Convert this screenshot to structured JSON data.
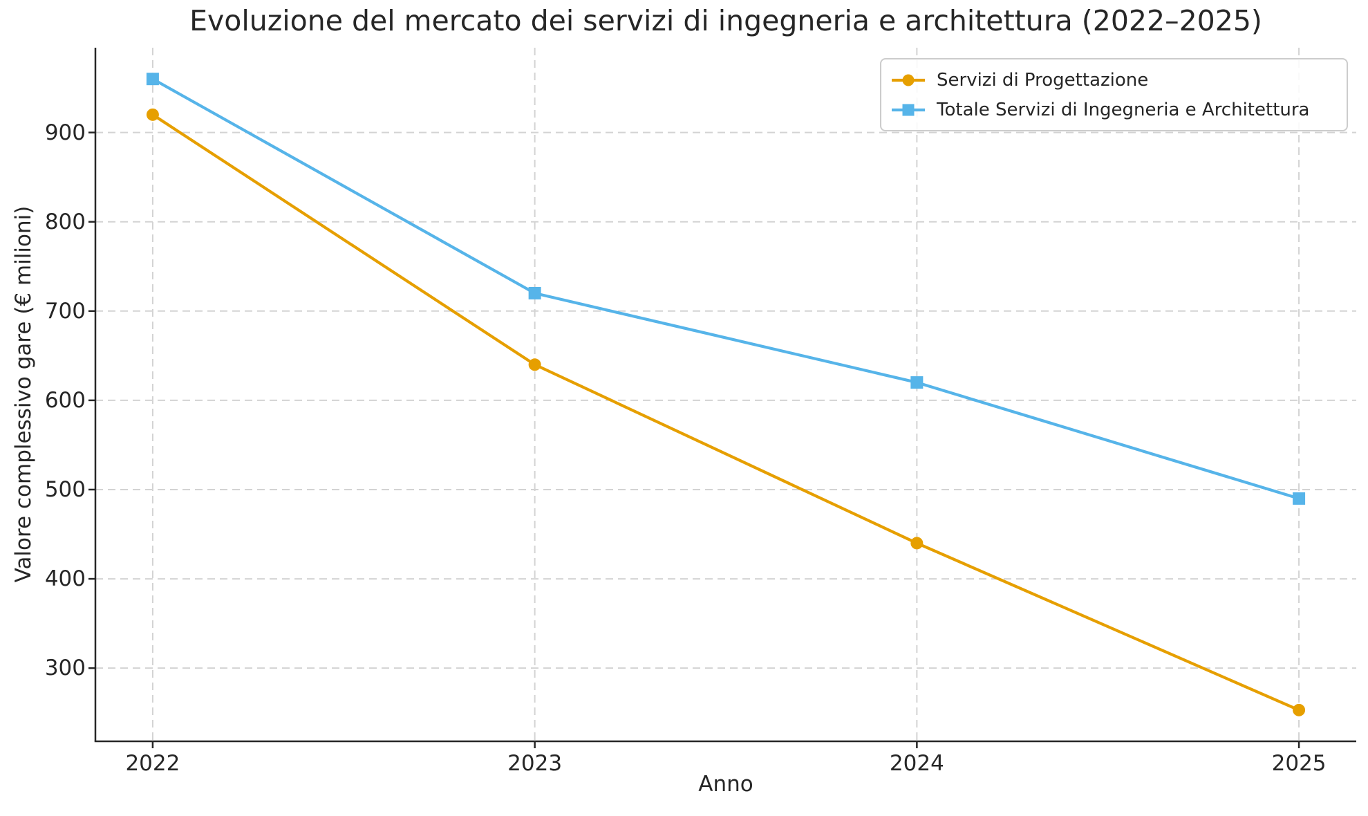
{
  "chart_data": {
    "type": "line",
    "title": "Evoluzione del mercato dei servizi di ingegneria e architettura (2022–2025)",
    "xlabel": "Anno",
    "ylabel": "Valore complessivo gare (€ milioni)",
    "x": [
      2022,
      2023,
      2024,
      2025
    ],
    "x_tick_labels": [
      "2022",
      "2023",
      "2024",
      "2025"
    ],
    "y_ticks": [
      300,
      400,
      500,
      600,
      700,
      800,
      900
    ],
    "y_tick_labels": [
      "300",
      "400",
      "500",
      "600",
      "700",
      "800",
      "900"
    ],
    "xlim": [
      2021.85,
      2025.15
    ],
    "ylim": [
      218,
      995
    ],
    "grid": true,
    "grid_linestyle": "dashed",
    "legend_position": "upper-right",
    "series": [
      {
        "name": "Servizi di Progettazione",
        "values": [
          920,
          640,
          440,
          253
        ],
        "color": "#E69F00",
        "marker": "circle"
      },
      {
        "name": "Totale Servizi di Ingegneria e Architettura",
        "values": [
          960,
          720,
          620,
          490
        ],
        "color": "#56B4E9",
        "marker": "square"
      }
    ],
    "colors": {
      "grid": "#d3d3d3",
      "spine": "#262626",
      "text": "#262626",
      "background": "#ffffff"
    }
  }
}
